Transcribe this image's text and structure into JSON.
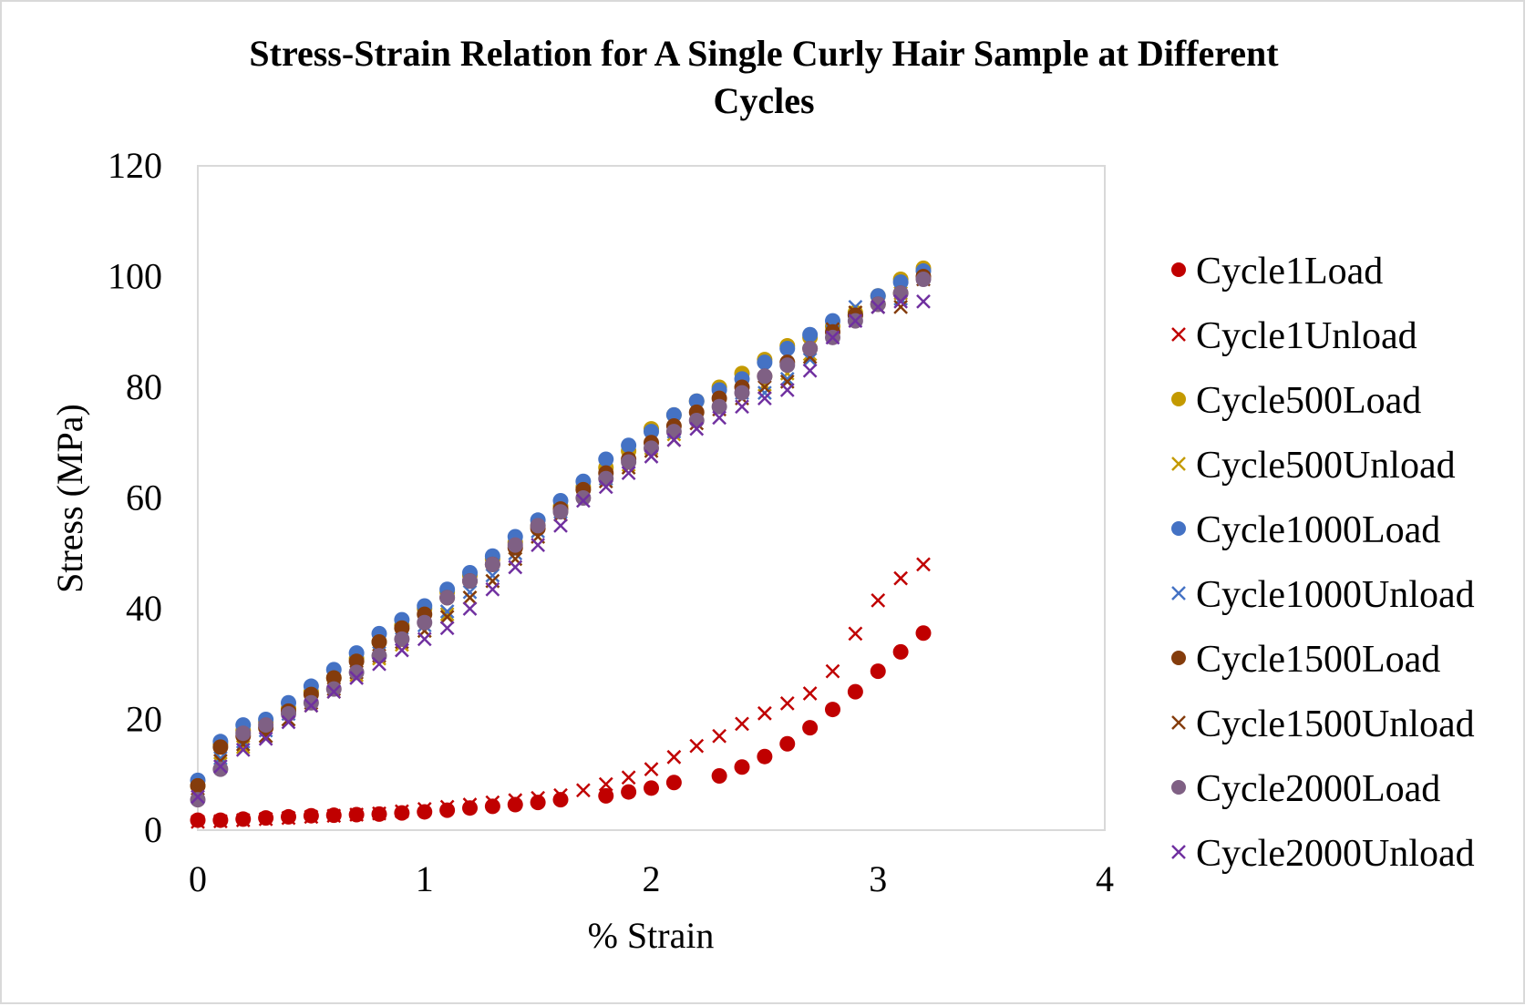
{
  "chart_data": {
    "type": "scatter",
    "title": [
      "Stress-Strain Relation for A Single Curly Hair Sample at Different",
      "Cycles"
    ],
    "xlabel": "% Strain",
    "ylabel": "Stress (MPa)",
    "xlim": [
      0,
      4
    ],
    "ylim": [
      0,
      120
    ],
    "xticks": [
      0,
      1,
      2,
      3,
      4
    ],
    "yticks": [
      0,
      20,
      40,
      60,
      80,
      100,
      120
    ],
    "grid": false,
    "legend_position": "right",
    "series": [
      {
        "name": "Cycle1Load",
        "marker": "circle",
        "color": "#c00000",
        "x": [
          0,
          0.1,
          0.2,
          0.3,
          0.4,
          0.5,
          0.6,
          0.7,
          0.8,
          0.9,
          1.0,
          1.1,
          1.2,
          1.3,
          1.4,
          1.5,
          1.6,
          1.8,
          1.9,
          2.0,
          2.1,
          2.3,
          2.4,
          2.5,
          2.6,
          2.7,
          2.8,
          2.9,
          3.0,
          3.1,
          3.2
        ],
        "y": [
          1.8,
          1.8,
          2.0,
          2.2,
          2.4,
          2.6,
          2.7,
          2.8,
          2.9,
          3.1,
          3.3,
          3.6,
          4.0,
          4.3,
          4.6,
          5.0,
          5.5,
          6.2,
          6.9,
          7.6,
          8.6,
          9.8,
          11.4,
          13.3,
          15.6,
          18.5,
          21.8,
          25.0,
          28.7,
          32.2,
          35.6
        ]
      },
      {
        "name": "Cycle1Unload",
        "marker": "x",
        "color": "#c00000",
        "x": [
          0,
          0.1,
          0.2,
          0.3,
          0.4,
          0.5,
          0.6,
          0.7,
          0.8,
          0.9,
          1.0,
          1.1,
          1.2,
          1.3,
          1.4,
          1.5,
          1.6,
          1.7,
          1.8,
          1.9,
          2.0,
          2.1,
          2.2,
          2.3,
          2.4,
          2.5,
          2.6,
          2.7,
          2.8,
          2.9,
          3.0,
          3.1,
          3.2
        ],
        "y": [
          1.5,
          1.6,
          1.8,
          2.0,
          2.2,
          2.4,
          2.6,
          2.8,
          3.0,
          3.4,
          3.8,
          4.2,
          4.6,
          5.0,
          5.4,
          5.8,
          6.3,
          7.2,
          8.3,
          9.5,
          11.0,
          13.2,
          15.2,
          17.0,
          19.2,
          21.1,
          22.9,
          24.7,
          28.7,
          35.5,
          41.5,
          45.5,
          48.0
        ]
      },
      {
        "name": "Cycle500Load",
        "marker": "circle",
        "color": "#c49a00",
        "x": [
          0,
          0.1,
          0.2,
          0.3,
          0.4,
          0.5,
          0.6,
          0.7,
          0.8,
          0.9,
          1.0,
          1.1,
          1.2,
          1.3,
          1.4,
          1.5,
          1.6,
          1.7,
          1.8,
          1.9,
          2.0,
          2.1,
          2.2,
          2.3,
          2.4,
          2.5,
          2.6,
          2.7,
          2.8,
          2.9,
          3.0,
          3.1,
          3.2
        ],
        "y": [
          8.0,
          15.5,
          18.0,
          19.5,
          22.0,
          25.0,
          27.5,
          31.0,
          34.0,
          37.0,
          40.0,
          43.0,
          46.0,
          49.0,
          52.0,
          55.0,
          58.5,
          62.0,
          65.5,
          68.5,
          72.5,
          75.0,
          77.5,
          80.0,
          82.5,
          85.0,
          87.5,
          89.0,
          91.0,
          93.5,
          96.5,
          99.5,
          101.5
        ]
      },
      {
        "name": "Cycle500Unload",
        "marker": "x",
        "color": "#c49a00",
        "x": [
          0,
          0.1,
          0.2,
          0.3,
          0.4,
          0.5,
          0.6,
          0.7,
          0.8,
          0.9,
          1.0,
          1.1,
          1.2,
          1.3,
          1.4,
          1.5,
          1.6,
          1.7,
          1.8,
          1.9,
          2.0,
          2.1,
          2.2,
          2.3,
          2.4,
          2.5,
          2.6,
          2.7,
          2.8,
          2.9,
          3.0,
          3.1,
          3.2
        ],
        "y": [
          7.0,
          12.0,
          15.0,
          17.0,
          20.0,
          22.5,
          25.0,
          28.0,
          31.0,
          33.5,
          36.0,
          39.0,
          42.0,
          45.0,
          49.0,
          53.0,
          57.0,
          60.5,
          63.5,
          66.0,
          69.0,
          71.5,
          74.5,
          77.5,
          80.0,
          80.5,
          82.5,
          86.0,
          90.5,
          93.5,
          95.5,
          97.0,
          100.5
        ]
      },
      {
        "name": "Cycle1000Load",
        "marker": "circle",
        "color": "#4472c4",
        "x": [
          0,
          0.1,
          0.2,
          0.3,
          0.4,
          0.5,
          0.6,
          0.7,
          0.8,
          0.9,
          1.0,
          1.1,
          1.2,
          1.3,
          1.4,
          1.5,
          1.6,
          1.7,
          1.8,
          1.9,
          2.0,
          2.1,
          2.2,
          2.3,
          2.4,
          2.5,
          2.6,
          2.7,
          2.8,
          2.9,
          3.0,
          3.1,
          3.2
        ],
        "y": [
          9.0,
          16.0,
          19.0,
          20.0,
          23.0,
          26.0,
          29.0,
          32.0,
          35.5,
          38.0,
          40.5,
          43.5,
          46.5,
          49.5,
          53.0,
          56.0,
          59.5,
          63.0,
          67.0,
          69.5,
          72.0,
          75.0,
          77.5,
          79.5,
          81.5,
          84.5,
          87.0,
          89.5,
          92.0,
          93.0,
          96.5,
          99.0,
          101.0
        ]
      },
      {
        "name": "Cycle1000Unload",
        "marker": "x",
        "color": "#4472c4",
        "x": [
          0,
          0.1,
          0.2,
          0.3,
          0.4,
          0.5,
          0.6,
          0.7,
          0.8,
          0.9,
          1.0,
          1.1,
          1.2,
          1.3,
          1.4,
          1.5,
          1.6,
          1.7,
          1.8,
          1.9,
          2.0,
          2.1,
          2.2,
          2.3,
          2.4,
          2.5,
          2.6,
          2.7,
          2.8,
          2.9,
          3.0,
          3.1,
          3.2
        ],
        "y": [
          8.5,
          13.0,
          16.0,
          18.0,
          21.0,
          23.5,
          26.0,
          29.0,
          32.0,
          34.5,
          37.0,
          39.5,
          43.0,
          46.0,
          50.0,
          54.0,
          57.5,
          61.0,
          63.5,
          66.5,
          69.5,
          72.0,
          74.5,
          77.0,
          79.0,
          79.0,
          81.5,
          85.0,
          90.0,
          94.5,
          94.5,
          96.0,
          99.5
        ]
      },
      {
        "name": "Cycle1500Load",
        "marker": "circle",
        "color": "#843c0c",
        "x": [
          0,
          0.1,
          0.2,
          0.3,
          0.4,
          0.5,
          0.6,
          0.7,
          0.8,
          0.9,
          1.0,
          1.1,
          1.2,
          1.3,
          1.4,
          1.5,
          1.6,
          1.7,
          1.8,
          1.9,
          2.0,
          2.1,
          2.2,
          2.3,
          2.4,
          2.5,
          2.6,
          2.7,
          2.8,
          2.9,
          3.0,
          3.1,
          3.2
        ],
        "y": [
          8.0,
          15.0,
          17.0,
          18.5,
          21.5,
          24.5,
          27.5,
          30.5,
          34.0,
          36.5,
          39.0,
          42.0,
          45.0,
          48.0,
          51.0,
          54.5,
          58.0,
          61.5,
          64.5,
          67.0,
          70.0,
          73.0,
          75.5,
          78.0,
          80.0,
          82.0,
          84.5,
          87.0,
          90.0,
          93.0,
          95.0,
          97.0,
          100.0
        ]
      },
      {
        "name": "Cycle1500Unload",
        "marker": "x",
        "color": "#843c0c",
        "x": [
          0,
          0.1,
          0.2,
          0.3,
          0.4,
          0.5,
          0.6,
          0.7,
          0.8,
          0.9,
          1.0,
          1.1,
          1.2,
          1.3,
          1.4,
          1.5,
          1.6,
          1.7,
          1.8,
          1.9,
          2.0,
          2.1,
          2.2,
          2.3,
          2.4,
          2.5,
          2.6,
          2.7,
          2.8,
          2.9,
          3.0,
          3.1,
          3.2
        ],
        "y": [
          7.5,
          12.5,
          15.5,
          17.0,
          20.0,
          23.0,
          25.5,
          28.5,
          31.5,
          34.0,
          36.0,
          38.5,
          42.0,
          45.0,
          49.0,
          53.0,
          57.0,
          60.5,
          63.0,
          65.5,
          68.5,
          70.5,
          73.5,
          76.0,
          78.0,
          80.0,
          81.0,
          85.5,
          90.5,
          93.5,
          94.5,
          94.5,
          99.5
        ]
      },
      {
        "name": "Cycle2000Load",
        "marker": "circle",
        "color": "#7f6084",
        "x": [
          0,
          0.1,
          0.2,
          0.3,
          0.4,
          0.5,
          0.6,
          0.7,
          0.8,
          0.9,
          1.0,
          1.1,
          1.2,
          1.3,
          1.4,
          1.5,
          1.6,
          1.7,
          1.8,
          1.9,
          2.0,
          2.1,
          2.2,
          2.3,
          2.4,
          2.5,
          2.6,
          2.7,
          2.8,
          2.9,
          3.0,
          3.1,
          3.2
        ],
        "y": [
          5.5,
          11.0,
          17.5,
          19.0,
          21.0,
          23.0,
          25.5,
          28.5,
          31.5,
          34.5,
          37.5,
          42.0,
          45.0,
          48.0,
          51.5,
          55.0,
          57.5,
          60.0,
          63.5,
          66.5,
          69.0,
          72.0,
          74.0,
          76.5,
          79.0,
          82.0,
          84.0,
          87.0,
          89.0,
          92.0,
          95.0,
          97.0,
          99.5
        ]
      },
      {
        "name": "Cycle2000Unload",
        "marker": "x",
        "color": "#7030a0",
        "x": [
          0,
          0.1,
          0.2,
          0.3,
          0.4,
          0.5,
          0.6,
          0.7,
          0.8,
          0.9,
          1.0,
          1.1,
          1.2,
          1.3,
          1.4,
          1.5,
          1.6,
          1.7,
          1.8,
          1.9,
          2.0,
          2.1,
          2.2,
          2.3,
          2.4,
          2.5,
          2.6,
          2.7,
          2.8,
          2.9,
          3.0,
          3.1,
          3.2
        ],
        "y": [
          6.0,
          11.5,
          14.5,
          16.5,
          19.5,
          22.5,
          25.0,
          27.5,
          30.0,
          32.5,
          34.5,
          36.5,
          40.0,
          43.5,
          47.5,
          51.5,
          55.0,
          59.5,
          62.0,
          64.5,
          67.5,
          70.5,
          72.5,
          74.5,
          76.5,
          78.0,
          79.5,
          83.0,
          89.0,
          92.0,
          94.5,
          95.5,
          95.5
        ]
      }
    ]
  }
}
